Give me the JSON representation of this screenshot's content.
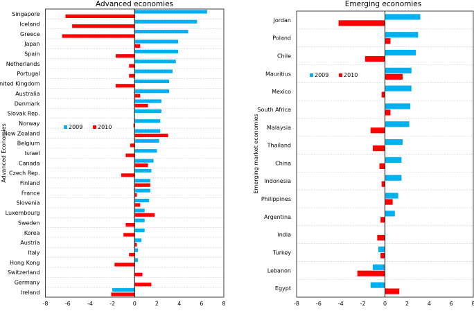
{
  "chart_data": [
    {
      "type": "bar",
      "orientation": "horizontal",
      "title": "Advanced economies",
      "ylabel": "Advanced Economies",
      "xlabel": "",
      "xlim": [
        -8,
        8
      ],
      "xticks": [
        -8,
        -6,
        -4,
        -2,
        0,
        2,
        4,
        6,
        8
      ],
      "legend_placement": "middle-left",
      "grid": "horizontal dashed",
      "categories": [
        "Singapore",
        "Iceland",
        "Greece",
        "Japan",
        "Spain",
        "Netherlands",
        "Portugal",
        "United Kingdom",
        "Australia",
        "Denmark",
        "Slovak Rep.",
        "Norway",
        "New Zealand",
        "Belgium",
        "Israel",
        "Canada",
        "Czech Rep.",
        "Finland",
        "France",
        "Slovenia",
        "Luxembourg",
        "Sweden",
        "Korea",
        "Austria",
        "Italy",
        "Hong Kong",
        "Switzerland",
        "Germany",
        "Ireland"
      ],
      "series": [
        {
          "name": "2009",
          "color": "#00B0F0",
          "values": [
            6.5,
            5.6,
            4.8,
            3.9,
            3.9,
            3.7,
            3.4,
            3.1,
            3.1,
            2.4,
            2.4,
            2.3,
            2.3,
            2.2,
            2.0,
            1.7,
            1.5,
            1.4,
            1.4,
            1.3,
            0.9,
            0.9,
            0.9,
            0.6,
            0.3,
            0.3,
            0,
            0,
            -2.0
          ]
        },
        {
          "name": "2010",
          "color": "#FF0000",
          "values": [
            -6.2,
            -5.6,
            -6.5,
            0.5,
            -1.7,
            -0.5,
            -0.5,
            -1.7,
            0.5,
            1.2,
            0,
            -0.1,
            3.0,
            -0.4,
            -0.8,
            1.2,
            -1.2,
            1.4,
            0.2,
            0.5,
            1.8,
            -0.8,
            -1.0,
            0.2,
            -0.5,
            -1.8,
            0.7,
            1.5,
            -2.1
          ]
        }
      ]
    },
    {
      "type": "bar",
      "orientation": "horizontal",
      "title": "Emerging economies",
      "ylabel": "Emerging market economies",
      "xlabel": "",
      "xlim": [
        -8,
        8
      ],
      "xticks": [
        -8,
        -6,
        -4,
        -2,
        0,
        2,
        4,
        6,
        8
      ],
      "legend_placement": "upper-left",
      "grid": "horizontal dashed",
      "categories": [
        "Jordan",
        "Poland",
        "Chile",
        "Mauritius",
        "Mexico",
        "South Africa",
        "Malaysia",
        "Thailand",
        "China",
        "Indonesia",
        "Philippines",
        "Argentina",
        "India",
        "Turkey",
        "Lebanon",
        "Egypt"
      ],
      "series": [
        {
          "name": "2009",
          "color": "#00B0F0",
          "values": [
            3.2,
            3.0,
            2.8,
            2.4,
            2.4,
            2.3,
            2.2,
            1.6,
            1.5,
            1.5,
            1.2,
            0.9,
            0,
            -0.6,
            -1.1,
            -1.3
          ]
        },
        {
          "name": "2010",
          "color": "#FF0000",
          "values": [
            -4.2,
            0.5,
            -1.8,
            1.6,
            -0.3,
            0.5,
            -1.3,
            -1.1,
            -0.5,
            -0.3,
            0.7,
            -0.4,
            -0.7,
            -0.4,
            -2.5,
            1.3
          ]
        }
      ]
    }
  ]
}
